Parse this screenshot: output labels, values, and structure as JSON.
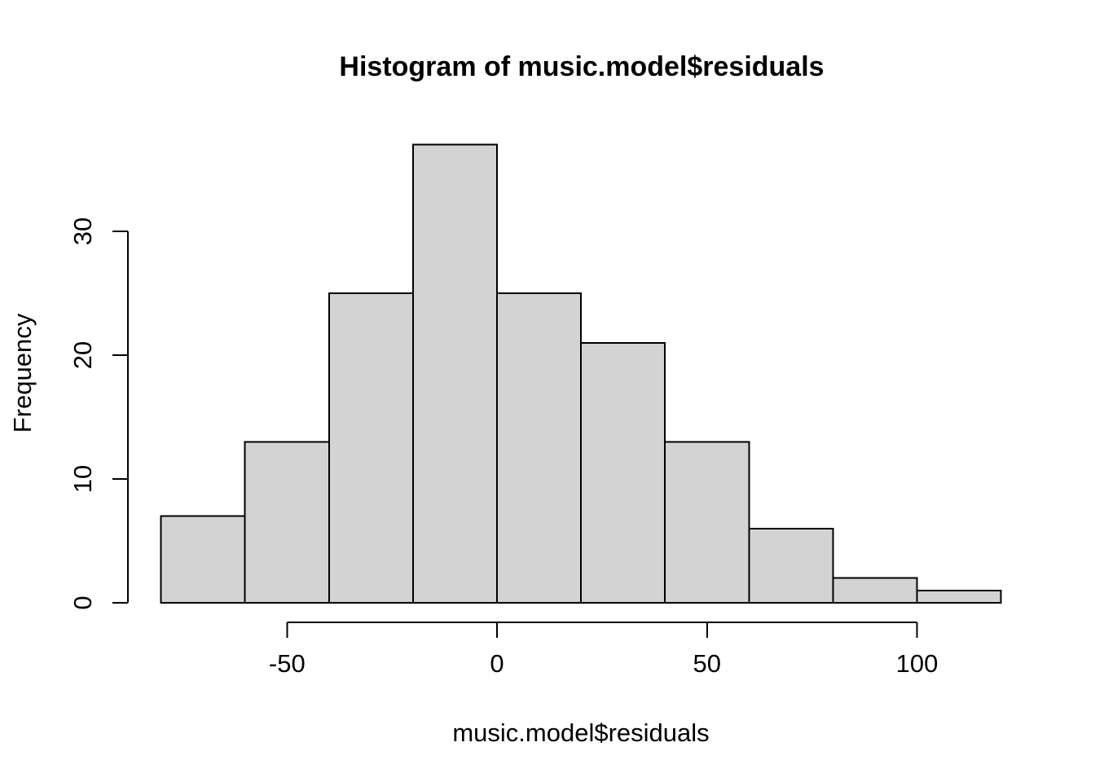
{
  "chart_data": {
    "type": "bar",
    "subtype": "histogram",
    "title": "Histogram of music.model$residuals",
    "xlabel": "music.model$residuals",
    "ylabel": "Frequency",
    "bin_breaks": [
      -80,
      -60,
      -40,
      -20,
      0,
      20,
      40,
      60,
      80,
      100,
      120
    ],
    "counts": [
      7,
      13,
      25,
      37,
      25,
      21,
      13,
      6,
      2,
      1
    ],
    "x_ticks": [
      -50,
      0,
      50,
      100
    ],
    "y_ticks": [
      0,
      10,
      20,
      30
    ],
    "xlim": [
      -80,
      120
    ],
    "ylim": [
      0,
      37
    ],
    "grid": false,
    "legend": "none",
    "bar_fill": "#d3d3d3",
    "bar_stroke": "#000000",
    "axis_color": "#000000",
    "background": "#ffffff"
  }
}
